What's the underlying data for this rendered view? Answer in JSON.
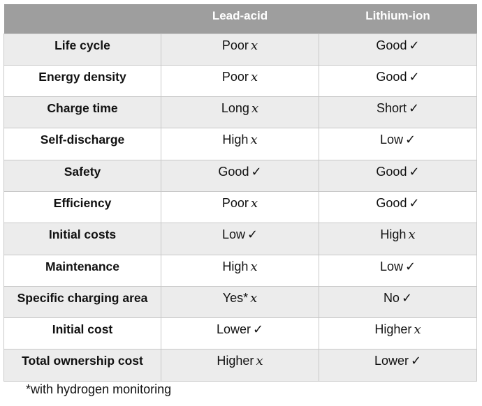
{
  "table": {
    "headers": [
      "",
      "Lead-acid",
      "Lithium-ion"
    ],
    "rows": [
      {
        "feature": "Life cycle",
        "lead_acid": {
          "text": "Poor",
          "mark": "x"
        },
        "lithium_ion": {
          "text": "Good",
          "mark": "✓"
        }
      },
      {
        "feature": "Energy density",
        "lead_acid": {
          "text": "Poor",
          "mark": "x"
        },
        "lithium_ion": {
          "text": "Good",
          "mark": "✓"
        }
      },
      {
        "feature": "Charge time",
        "lead_acid": {
          "text": "Long",
          "mark": "x"
        },
        "lithium_ion": {
          "text": "Short",
          "mark": "✓"
        }
      },
      {
        "feature": "Self-discharge",
        "lead_acid": {
          "text": "High",
          "mark": "x"
        },
        "lithium_ion": {
          "text": "Low",
          "mark": "✓"
        }
      },
      {
        "feature": "Safety",
        "lead_acid": {
          "text": "Good",
          "mark": "✓"
        },
        "lithium_ion": {
          "text": "Good",
          "mark": "✓"
        }
      },
      {
        "feature": "Efficiency",
        "lead_acid": {
          "text": "Poor",
          "mark": "x"
        },
        "lithium_ion": {
          "text": "Good",
          "mark": "✓"
        }
      },
      {
        "feature": "Initial costs",
        "lead_acid": {
          "text": "Low",
          "mark": "✓"
        },
        "lithium_ion": {
          "text": "High",
          "mark": "x"
        }
      },
      {
        "feature": "Maintenance",
        "lead_acid": {
          "text": "High",
          "mark": "x"
        },
        "lithium_ion": {
          "text": "Low",
          "mark": "✓"
        }
      },
      {
        "feature": "Specific charging area",
        "lead_acid": {
          "text": "Yes*",
          "mark": "x"
        },
        "lithium_ion": {
          "text": "No",
          "mark": "✓"
        }
      },
      {
        "feature": "Initial cost",
        "lead_acid": {
          "text": "Lower",
          "mark": "✓"
        },
        "lithium_ion": {
          "text": "Higher",
          "mark": "x"
        }
      },
      {
        "feature": "Total ownership cost",
        "lead_acid": {
          "text": "Higher",
          "mark": "x"
        },
        "lithium_ion": {
          "text": "Lower",
          "mark": "✓"
        }
      }
    ]
  },
  "footnote": "*with hydrogen monitoring",
  "colors": {
    "header_bg": "#9e9e9e",
    "header_text": "#ffffff",
    "row_alt_bg": "#ececec",
    "border": "#c8c8c8"
  }
}
